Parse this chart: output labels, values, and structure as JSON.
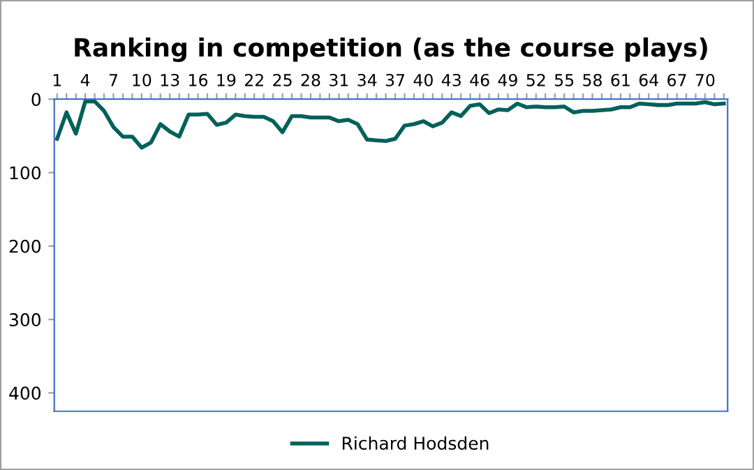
{
  "chart_data": {
    "type": "line",
    "title": "Ranking in competition (as the course plays)",
    "categories": [
      "1",
      null,
      null,
      "4",
      null,
      null,
      "7",
      null,
      null,
      "10",
      null,
      null,
      "13",
      null,
      null,
      "16",
      null,
      null,
      "19",
      null,
      null,
      "22",
      null,
      null,
      "25",
      null,
      null,
      "28",
      null,
      null,
      "31",
      null,
      null,
      "34",
      null,
      null,
      "37",
      null,
      null,
      "40",
      null,
      null,
      "43",
      null,
      null,
      "46",
      null,
      null,
      "49",
      null,
      null,
      "52",
      null,
      null,
      "55",
      null,
      null,
      "58",
      null,
      null,
      "61",
      null,
      null,
      "64",
      null,
      null,
      "67",
      null,
      null,
      "70",
      null,
      null
    ],
    "series": [
      {
        "name": "Richard Hodsden",
        "color": "#00605a",
        "values": [
          54,
          18,
          47,
          3,
          3,
          16,
          38,
          51,
          51,
          66,
          59,
          34,
          44,
          51,
          21,
          21,
          20,
          35,
          32,
          21,
          23,
          24,
          24,
          30,
          45,
          23,
          23,
          25,
          25,
          25,
          30,
          28,
          34,
          55,
          56,
          57,
          54,
          36,
          34,
          30,
          37,
          32,
          18,
          23,
          9,
          7,
          19,
          14,
          15,
          6,
          11,
          10,
          11,
          11,
          10,
          18,
          16,
          16,
          15,
          14,
          11,
          11,
          6,
          7,
          8,
          8,
          6,
          6,
          6,
          4,
          7,
          6
        ]
      }
    ],
    "ylim": [
      425,
      0
    ],
    "yticks": [
      0,
      100,
      200,
      300,
      400
    ],
    "grid": false,
    "legend": "bottom",
    "marker": "none",
    "line_style": "solid"
  }
}
